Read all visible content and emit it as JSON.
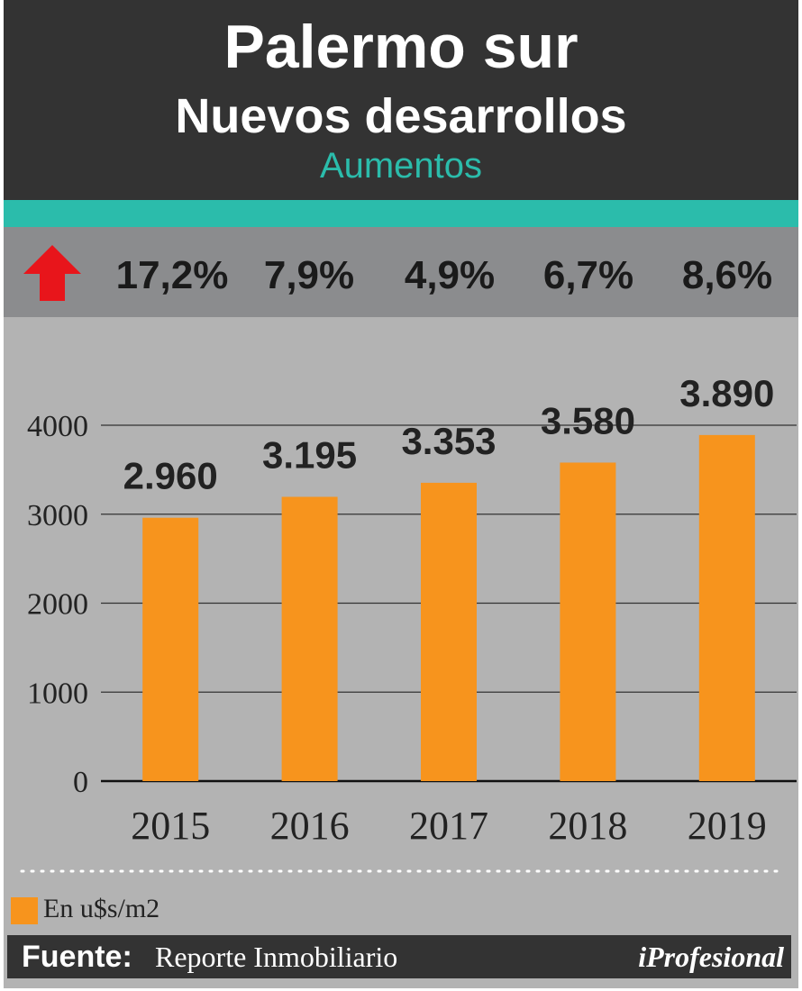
{
  "header": {
    "title": "Palermo sur",
    "subtitle": "Nuevos desarrollos",
    "tagline": "Aumentos"
  },
  "increases": {
    "icon": "red-up-arrow-icon",
    "values": [
      "17,2%",
      "7,9%",
      "4,9%",
      "6,7%",
      "8,6%"
    ]
  },
  "chart_data": {
    "type": "bar",
    "categories": [
      "2015",
      "2016",
      "2017",
      "2018",
      "2019"
    ],
    "values": [
      2960,
      3195,
      3353,
      3580,
      3890
    ],
    "data_labels": [
      "2.960",
      "3.195",
      "3.353",
      "3.580",
      "3.890"
    ],
    "y_ticks": [
      "0",
      "1000",
      "2000",
      "3000",
      "4000"
    ],
    "ylim": [
      0,
      4000
    ],
    "grid": true,
    "bar_color": "#f7941d",
    "legend": "En u$s/m2",
    "legend_position": "bottom-left"
  },
  "footer": {
    "source_label": "Fuente:",
    "source_value": "Reporte Inmobiliario",
    "brand": "iProfesional"
  },
  "colors": {
    "header_bg": "#333333",
    "accent_teal": "#2bbcab",
    "band_gray": "#8b8c8e",
    "chart_bg": "#b3b3b3",
    "arrow_red": "#e8151b",
    "bar_orange": "#f7941d"
  }
}
